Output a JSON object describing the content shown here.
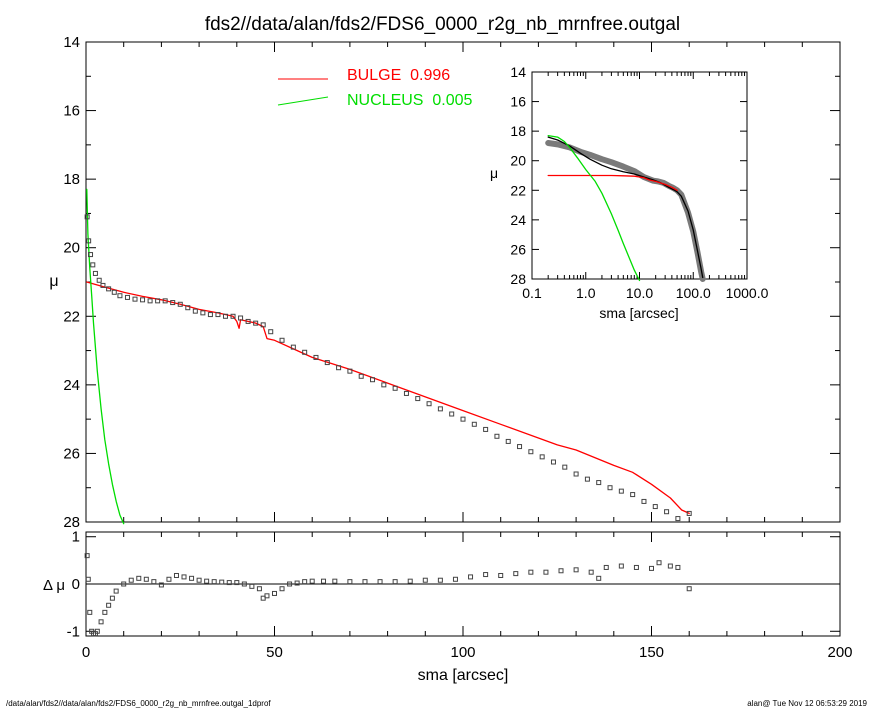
{
  "title": "fds2//data/alan/fds2/FDS6_0000_r2g_nb_mrnfree.outgal",
  "footer_left": "/data/alan/fds2//data/alan/fds2/FDS6_0000_r2g_nb_mrnfree.outgal_1dprof",
  "footer_right": "alan@  Tue Nov 12 06:53:29 2019",
  "colors": {
    "bulge": "#ff0000",
    "nucleus": "#00dd00",
    "data": "#555555",
    "total": "#000000"
  },
  "chart_data": [
    {
      "type": "line",
      "panel": "main",
      "xlim": [
        0,
        200
      ],
      "ylim": [
        28,
        14
      ],
      "y_inverted": true,
      "ylabel": "μ",
      "yticks": [
        "14",
        "16",
        "18",
        "20",
        "22",
        "24",
        "26",
        "28"
      ],
      "legend": [
        {
          "label": "BULGE  0.996",
          "color": "#ff0000"
        },
        {
          "label": "NUCLEUS  0.005",
          "color": "#00dd00"
        }
      ],
      "series": [
        {
          "name": "BULGE",
          "style": "line",
          "x": [
            0.2,
            5,
            10,
            15,
            20,
            25,
            30,
            35,
            39,
            40,
            40.6,
            41,
            45,
            47,
            48,
            50,
            55,
            60,
            70,
            80,
            90,
            100,
            110,
            120,
            125,
            130,
            140,
            145,
            150,
            155,
            158,
            160
          ],
          "y": [
            21.0,
            21.15,
            21.3,
            21.42,
            21.52,
            21.65,
            21.8,
            21.9,
            22.0,
            22.15,
            22.35,
            22.1,
            22.2,
            22.3,
            22.65,
            22.7,
            22.95,
            23.2,
            23.55,
            23.95,
            24.35,
            24.75,
            25.15,
            25.55,
            25.75,
            25.9,
            26.35,
            26.55,
            26.9,
            27.3,
            27.65,
            27.75
          ]
        },
        {
          "name": "NUCLEUS",
          "style": "line",
          "x": [
            0.2,
            0.5,
            1,
            1.5,
            2,
            3,
            4,
            5,
            6,
            7,
            8,
            9,
            10
          ],
          "y": [
            18.3,
            19.6,
            20.6,
            21.4,
            22.2,
            23.6,
            24.7,
            25.6,
            26.3,
            26.9,
            27.4,
            27.8,
            28.05
          ]
        },
        {
          "name": "data",
          "style": "points",
          "x": [
            0.3,
            0.7,
            1.2,
            1.8,
            2.5,
            3.5,
            4.5,
            6,
            7.5,
            9,
            11,
            13,
            15,
            17,
            19,
            21,
            23,
            25,
            27,
            29,
            31,
            33,
            35,
            37,
            39,
            41,
            43,
            45,
            47,
            49,
            52,
            55,
            58,
            61,
            64,
            67,
            70,
            73,
            76,
            79,
            82,
            85,
            88,
            91,
            94,
            97,
            100,
            103,
            106,
            109,
            112,
            115,
            118,
            121,
            124,
            127,
            130,
            133,
            136,
            139,
            142,
            145,
            148,
            151,
            154,
            157,
            160
          ],
          "y": [
            19.1,
            19.8,
            20.2,
            20.5,
            20.75,
            20.95,
            21.1,
            21.2,
            21.3,
            21.4,
            21.45,
            21.5,
            21.52,
            21.55,
            21.55,
            21.55,
            21.6,
            21.65,
            21.75,
            21.85,
            21.9,
            21.95,
            21.95,
            22.0,
            22.0,
            22.05,
            22.15,
            22.2,
            22.25,
            22.45,
            22.7,
            22.9,
            23.05,
            23.2,
            23.35,
            23.5,
            23.6,
            23.75,
            23.85,
            24.0,
            24.1,
            24.25,
            24.4,
            24.55,
            24.7,
            24.85,
            25.0,
            25.15,
            25.3,
            25.5,
            25.65,
            25.8,
            25.95,
            26.1,
            26.25,
            26.4,
            26.6,
            26.75,
            26.85,
            27.0,
            27.1,
            27.2,
            27.4,
            27.55,
            27.7,
            27.9,
            27.75
          ]
        }
      ]
    },
    {
      "type": "scatter",
      "panel": "residual",
      "xlim": [
        0,
        200
      ],
      "ylim": [
        -1.1,
        1.1
      ],
      "xlabel": "sma [arcsec]",
      "ylabel": "Δ μ",
      "xticks": [
        "0",
        "50",
        "100",
        "150",
        "200"
      ],
      "yticks": [
        "-1",
        "0",
        "1"
      ],
      "reference_line": 0,
      "series": [
        {
          "name": "residual",
          "style": "points",
          "x": [
            0.3,
            0.6,
            1,
            1.5,
            2,
            2.5,
            3,
            4,
            5,
            6,
            7,
            8,
            10,
            12,
            14,
            16,
            18,
            20,
            22,
            24,
            26,
            28,
            30,
            32,
            34,
            36,
            38,
            40,
            42,
            44,
            46,
            47,
            48,
            50,
            52,
            54,
            56,
            58,
            60,
            63,
            66,
            70,
            74,
            78,
            82,
            86,
            90,
            94,
            98,
            102,
            106,
            110,
            114,
            118,
            122,
            126,
            130,
            134,
            136,
            138,
            142,
            146,
            150,
            152,
            155,
            157,
            160
          ],
          "y": [
            0.6,
            0.1,
            -0.6,
            -1.0,
            -1.05,
            -1.05,
            -1.0,
            -0.8,
            -0.6,
            -0.45,
            -0.3,
            -0.15,
            0.0,
            0.08,
            0.12,
            0.1,
            0.05,
            -0.02,
            0.1,
            0.18,
            0.15,
            0.12,
            0.08,
            0.06,
            0.05,
            0.04,
            0.03,
            0.03,
            0.0,
            -0.05,
            -0.1,
            -0.3,
            -0.25,
            -0.2,
            -0.1,
            0.0,
            0.02,
            0.05,
            0.06,
            0.06,
            0.06,
            0.05,
            0.05,
            0.05,
            0.05,
            0.06,
            0.08,
            0.08,
            0.1,
            0.15,
            0.2,
            0.18,
            0.22,
            0.25,
            0.25,
            0.28,
            0.3,
            0.25,
            0.12,
            0.35,
            0.38,
            0.35,
            0.33,
            0.45,
            0.38,
            0.35,
            -0.1
          ]
        }
      ]
    },
    {
      "type": "line",
      "panel": "inset",
      "x_scale": "log",
      "xlim": [
        0.1,
        1000
      ],
      "ylim": [
        28,
        14
      ],
      "y_inverted": true,
      "xlabel": "sma [arcsec]",
      "ylabel": "μ",
      "xticks": [
        "0.1",
        "1.0",
        "10.0",
        "100.0",
        "1000.0"
      ],
      "yticks": [
        "14",
        "16",
        "18",
        "20",
        "22",
        "24",
        "26",
        "28"
      ],
      "series": [
        {
          "name": "data",
          "style": "thick",
          "color": "#7a7a7a",
          "x": [
            0.2,
            0.3,
            0.5,
            0.8,
            1.2,
            2,
            3,
            5,
            8,
            12,
            18,
            22,
            28,
            35,
            40,
            45,
            50,
            60,
            80,
            100,
            120,
            140,
            150
          ],
          "y": [
            18.8,
            18.9,
            19.1,
            19.4,
            19.6,
            19.9,
            20.1,
            20.4,
            20.7,
            21.1,
            21.35,
            21.4,
            21.5,
            21.7,
            21.8,
            21.9,
            22.0,
            22.3,
            23.5,
            24.8,
            26.2,
            27.5,
            28.0
          ]
        },
        {
          "name": "total",
          "style": "line",
          "color": "#000000",
          "x": [
            0.2,
            0.3,
            0.5,
            0.8,
            1.2,
            2,
            3,
            5,
            8,
            12,
            18,
            25,
            35,
            45,
            50,
            60,
            80,
            100,
            120,
            140,
            150
          ],
          "y": [
            18.4,
            18.6,
            19.0,
            19.5,
            19.9,
            20.3,
            20.55,
            20.75,
            20.9,
            21.1,
            21.3,
            21.5,
            21.8,
            22.0,
            22.1,
            22.4,
            23.4,
            24.7,
            26.1,
            27.3,
            27.9
          ]
        },
        {
          "name": "BULGE",
          "style": "line",
          "color": "#ff0000",
          "x": [
            0.2,
            1,
            3,
            5,
            8,
            10,
            12,
            15,
            20,
            30,
            40,
            50
          ],
          "y": [
            21.0,
            21.0,
            21.0,
            21.02,
            21.05,
            21.1,
            21.15,
            21.3,
            21.4,
            21.6,
            21.8,
            22.0
          ]
        },
        {
          "name": "NUCLEUS",
          "style": "line",
          "color": "#00dd00",
          "x": [
            0.2,
            0.3,
            0.4,
            0.5,
            0.7,
            1,
            1.5,
            2,
            3,
            4,
            5,
            6,
            8,
            10
          ],
          "y": [
            18.3,
            18.4,
            18.7,
            19.1,
            19.8,
            20.6,
            21.4,
            22.2,
            23.6,
            24.7,
            25.6,
            26.3,
            27.4,
            28.1
          ]
        }
      ]
    }
  ]
}
